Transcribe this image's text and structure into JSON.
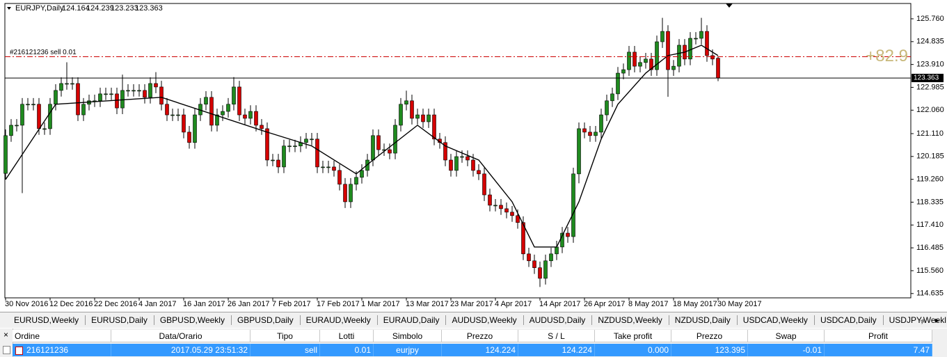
{
  "chart_data": {
    "type": "candlestick",
    "symbol": "EURJPY,Daily",
    "categories": [
      "30 Nov 2016",
      null,
      null,
      null,
      null,
      null,
      null,
      null,
      "12 Dec 2016",
      null,
      null,
      null,
      null,
      null,
      null,
      null,
      "22 Dec 2016",
      null,
      null,
      null,
      null,
      null,
      null,
      null,
      "4 Jan 2017",
      null,
      null,
      null,
      null,
      null,
      null,
      null,
      "16 Jan 2017",
      null,
      null,
      null,
      null,
      null,
      null,
      null,
      "26 Jan 2017",
      null,
      null,
      null,
      null,
      null,
      null,
      null,
      "7 Feb 2017",
      null,
      null,
      null,
      null,
      null,
      null,
      null,
      "17 Feb 2017",
      null,
      null,
      null,
      null,
      null,
      null,
      null,
      "1 Mar 2017",
      null,
      null,
      null,
      null,
      null,
      null,
      null,
      "13 Mar 2017",
      null,
      null,
      null,
      null,
      null,
      null,
      null,
      "23 Mar 2017",
      null,
      null,
      null,
      null,
      null,
      null,
      null,
      "4 Apr 2017",
      null,
      null,
      null,
      null,
      null,
      null,
      null,
      "14 Apr 2017",
      null,
      null,
      null,
      null,
      null,
      null,
      null,
      "26 Apr 2017",
      null,
      null,
      null,
      null,
      null,
      null,
      null,
      "8 May 2017",
      null,
      null,
      null,
      null,
      null,
      null,
      null,
      "18 May 2017",
      null,
      null,
      null,
      null,
      null,
      null,
      null,
      "30 May 2017"
    ],
    "open": [
      119.5,
      121.03,
      121.45,
      121.45,
      122.3,
      122.3,
      122.3,
      121.31,
      121.31,
      122.3,
      122.86,
      123.14,
      123.14,
      123.14,
      121.87,
      122.3,
      122.44,
      122.44,
      122.72,
      122.72,
      122.72,
      122.15,
      122.86,
      122.86,
      122.86,
      122.86,
      122.58,
      123.14,
      123.0,
      122.3,
      121.87,
      121.87,
      121.87,
      121.17,
      120.75,
      121.87,
      122.3,
      122.58,
      121.45,
      121.87,
      122.01,
      122.3,
      123.0,
      121.87,
      121.73,
      122.01,
      121.45,
      121.31,
      120.04,
      120.04,
      119.76,
      120.61,
      120.61,
      120.61,
      120.75,
      120.89,
      120.89,
      119.76,
      119.76,
      119.76,
      119.62,
      119.06,
      118.35,
      119.06,
      119.34,
      119.62,
      120.04,
      121.03,
      120.46,
      120.46,
      120.32,
      121.45,
      122.3,
      122.44,
      121.73,
      121.87,
      121.59,
      121.87,
      120.89,
      120.75,
      120.04,
      119.62,
      120.18,
      120.18,
      120.04,
      119.62,
      119.48,
      118.63,
      118.21,
      118.21,
      118.07,
      117.93,
      117.79,
      117.51,
      116.24,
      115.96,
      115.68,
      115.25,
      115.96,
      116.24,
      116.52,
      117.08,
      116.94,
      119.48,
      121.31,
      121.17,
      121.03,
      121.17,
      121.87,
      122.44,
      122.72,
      123.56,
      123.7,
      124.41,
      123.84,
      123.99,
      124.13,
      123.7,
      124.83,
      125.25,
      123.7,
      123.84,
      124.69,
      124.13,
      124.97,
      124.97,
      125.25,
      124.27,
      124.164
    ],
    "high": [
      121.28,
      121.7,
      121.7,
      122.55,
      122.55,
      122.55,
      122.55,
      121.56,
      122.55,
      123.11,
      123.39,
      124.0,
      123.39,
      123.39,
      122.55,
      122.69,
      122.69,
      122.97,
      122.97,
      122.97,
      122.97,
      123.5,
      123.11,
      123.11,
      123.11,
      123.11,
      123.39,
      123.6,
      123.25,
      122.55,
      122.12,
      122.12,
      122.12,
      121.42,
      122.12,
      122.55,
      122.83,
      122.83,
      122.12,
      122.26,
      122.55,
      123.4,
      123.25,
      122.12,
      122.26,
      122.26,
      121.7,
      121.56,
      120.29,
      120.29,
      120.86,
      120.86,
      120.86,
      121.0,
      121.14,
      121.14,
      121.14,
      120.01,
      120.01,
      120.01,
      119.87,
      119.31,
      119.31,
      119.59,
      119.87,
      120.29,
      121.28,
      121.28,
      120.71,
      120.71,
      121.7,
      122.55,
      122.85,
      122.69,
      122.12,
      122.12,
      122.12,
      122.12,
      121.14,
      121.0,
      120.29,
      120.43,
      120.43,
      120.43,
      120.29,
      119.87,
      119.73,
      118.88,
      118.46,
      118.46,
      118.32,
      118.18,
      118.04,
      117.76,
      116.49,
      116.21,
      115.93,
      116.21,
      116.49,
      116.77,
      117.33,
      117.33,
      119.73,
      121.56,
      121.56,
      121.42,
      121.42,
      122.12,
      122.69,
      122.97,
      123.81,
      123.95,
      124.66,
      124.66,
      124.24,
      124.38,
      124.38,
      125.08,
      125.8,
      125.5,
      124.09,
      124.94,
      124.94,
      125.22,
      125.22,
      125.8,
      125.5,
      124.52,
      124.239
    ],
    "low": [
      119.25,
      120.78,
      121.2,
      118.7,
      122.05,
      122.05,
      121.06,
      121.06,
      121.06,
      122.05,
      122.61,
      122.89,
      122.89,
      121.62,
      121.62,
      122.05,
      122.19,
      122.19,
      122.47,
      122.47,
      121.9,
      121.9,
      122.61,
      122.61,
      122.61,
      122.33,
      122.33,
      122.75,
      122.05,
      121.62,
      121.62,
      121.62,
      120.92,
      120.5,
      120.5,
      121.62,
      122.05,
      121.2,
      121.2,
      121.62,
      121.76,
      122.05,
      121.62,
      121.48,
      121.48,
      121.2,
      121.06,
      119.79,
      119.79,
      119.51,
      119.51,
      120.36,
      120.36,
      120.36,
      120.5,
      120.64,
      119.51,
      119.51,
      119.51,
      119.37,
      118.81,
      118.1,
      118.1,
      118.81,
      119.09,
      119.37,
      119.79,
      120.21,
      120.21,
      120.07,
      120.07,
      121.2,
      122.05,
      121.48,
      121.48,
      121.34,
      121.34,
      120.64,
      120.5,
      119.79,
      119.37,
      119.37,
      119.93,
      119.79,
      119.37,
      119.23,
      118.38,
      117.96,
      117.96,
      117.82,
      117.68,
      117.54,
      117.26,
      115.99,
      115.71,
      115.43,
      114.9,
      115.0,
      115.71,
      115.99,
      116.27,
      116.69,
      116.69,
      119.1,
      120.92,
      120.78,
      120.78,
      120.92,
      121.62,
      122.19,
      122.47,
      123.31,
      123.45,
      123.59,
      123.59,
      123.74,
      123.45,
      123.45,
      124.58,
      122.6,
      123.45,
      123.59,
      123.88,
      123.88,
      124.72,
      124.72,
      124.02,
      123.88,
      123.233
    ],
    "close": [
      121.03,
      121.45,
      121.45,
      122.3,
      122.3,
      122.3,
      121.31,
      121.31,
      122.3,
      122.86,
      123.14,
      123.14,
      123.14,
      121.87,
      122.3,
      122.44,
      122.44,
      122.72,
      122.72,
      122.72,
      122.15,
      122.86,
      122.86,
      122.86,
      122.86,
      122.58,
      123.14,
      123.0,
      122.3,
      121.87,
      121.87,
      121.87,
      121.17,
      120.75,
      121.87,
      122.3,
      122.58,
      121.45,
      121.87,
      122.01,
      122.3,
      123.0,
      121.87,
      121.73,
      122.01,
      121.45,
      121.31,
      120.04,
      120.04,
      119.76,
      120.61,
      120.61,
      120.61,
      120.75,
      120.89,
      120.89,
      119.76,
      119.76,
      119.76,
      119.62,
      119.06,
      118.35,
      119.06,
      119.34,
      119.62,
      120.04,
      121.03,
      120.46,
      120.46,
      120.32,
      121.45,
      122.3,
      122.44,
      121.73,
      121.87,
      121.59,
      121.87,
      120.89,
      120.75,
      120.04,
      119.62,
      120.18,
      120.18,
      120.04,
      119.62,
      119.48,
      118.63,
      118.21,
      118.21,
      118.07,
      117.93,
      117.79,
      117.51,
      116.24,
      115.96,
      115.68,
      115.25,
      115.96,
      116.24,
      116.52,
      117.08,
      116.94,
      119.48,
      121.31,
      121.17,
      121.03,
      121.17,
      121.87,
      122.44,
      122.72,
      123.56,
      123.7,
      124.41,
      123.84,
      123.99,
      124.13,
      123.7,
      124.83,
      125.25,
      123.7,
      123.84,
      124.69,
      124.13,
      124.97,
      124.97,
      125.25,
      124.27,
      124.13,
      123.363
    ],
    "bull_color": "#1f8a1f",
    "bear_color": "#d40000",
    "ma": {
      "color": "#000000",
      "x": [
        0,
        9,
        28,
        47,
        55,
        63,
        66,
        74,
        79,
        85,
        91,
        95,
        99,
        103,
        107,
        110,
        115,
        119,
        122,
        125,
        128
      ],
      "values": [
        119.25,
        122.3,
        122.58,
        121.17,
        120.61,
        119.48,
        120.04,
        121.45,
        120.61,
        120.04,
        118.35,
        116.52,
        116.52,
        118.35,
        120.89,
        122.3,
        123.56,
        124.27,
        124.41,
        124.69,
        124.27
      ]
    },
    "order_line": {
      "label": "#216121236 sell 0.01",
      "price": 124.224,
      "profit": "+82.9",
      "color": "#cc0000"
    },
    "ylim": [
      114.46,
      126.38
    ],
    "yticks": [
      {
        "value": 125.76,
        "label": "125.760"
      },
      {
        "value": 124.835,
        "label": "124.835"
      },
      {
        "value": 123.91,
        "label": "123.910"
      },
      {
        "value": 122.985,
        "label": "122.985"
      },
      {
        "value": 122.06,
        "label": "122.060"
      },
      {
        "value": 121.11,
        "label": "121.110"
      },
      {
        "value": 120.185,
        "label": "120.185"
      },
      {
        "value": 119.26,
        "label": "119.260"
      },
      {
        "value": 118.335,
        "label": "118.335"
      },
      {
        "value": 117.41,
        "label": "117.410"
      },
      {
        "value": 116.485,
        "label": "116.485"
      },
      {
        "value": 115.56,
        "label": "115.560"
      },
      {
        "value": 114.635,
        "label": "114.635"
      }
    ]
  },
  "tabs": [
    "EURUSD,Weekly",
    "EURUSD,Daily",
    "GBPUSD,Weekly",
    "GBPUSD,Daily",
    "EURAUD,Weekly",
    "EURAUD,Daily",
    "AUDUSD,Weekly",
    "AUDUSD,Daily",
    "NZDUSD,Weekly",
    "NZDUSD,Daily",
    "USDCAD,Weekly",
    "USDCAD,Daily",
    "USDJPY,Weekl"
  ],
  "table": {
    "columns": [
      "Ordine",
      "Data/Orario",
      "Tipo",
      "Lotti",
      "Simbolo",
      "Prezzo",
      "S / L",
      "Take profit",
      "Prezzo",
      "Swap",
      "Profit"
    ],
    "rows": [
      [
        "216121236",
        "2017.05.29 23:51:32",
        "sell",
        "0.01",
        "eurjpy",
        "124.224",
        "124.224",
        "0.000",
        "123.395",
        "-0.01",
        "7.47"
      ]
    ]
  }
}
